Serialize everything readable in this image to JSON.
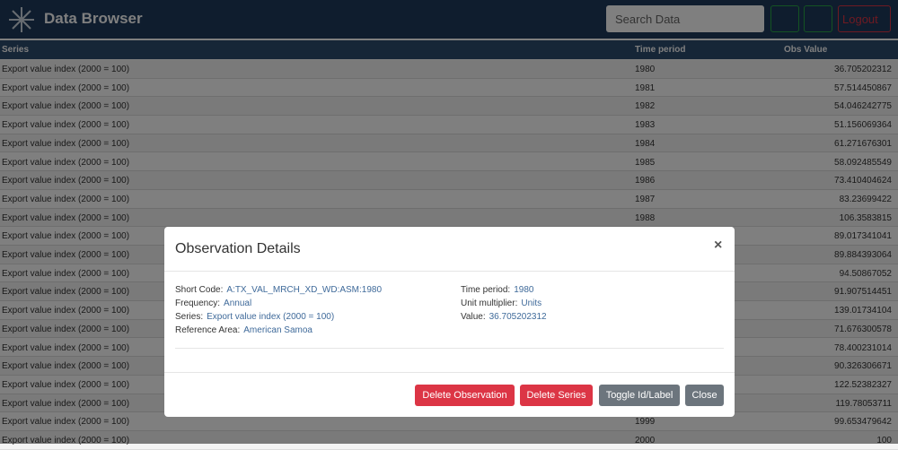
{
  "header": {
    "title": "Data Browser",
    "search_placeholder": "Search Data",
    "logout": "Logout"
  },
  "table": {
    "columns": [
      "Series",
      "Time period",
      "Obs Value"
    ],
    "rows": [
      [
        "Export value index (2000 = 100)",
        "1980",
        "36.705202312"
      ],
      [
        "Export value index (2000 = 100)",
        "1981",
        "57.514450867"
      ],
      [
        "Export value index (2000 = 100)",
        "1982",
        "54.046242775"
      ],
      [
        "Export value index (2000 = 100)",
        "1983",
        "51.156069364"
      ],
      [
        "Export value index (2000 = 100)",
        "1984",
        "61.271676301"
      ],
      [
        "Export value index (2000 = 100)",
        "1985",
        "58.092485549"
      ],
      [
        "Export value index (2000 = 100)",
        "1986",
        "73.410404624"
      ],
      [
        "Export value index (2000 = 100)",
        "1987",
        "83.23699422"
      ],
      [
        "Export value index (2000 = 100)",
        "1988",
        "106.3583815"
      ],
      [
        "Export value index (2000 = 100)",
        null,
        "89.017341041"
      ],
      [
        "Export value index (2000 = 100)",
        null,
        "89.884393064"
      ],
      [
        "Export value index (2000 = 100)",
        null,
        "94.50867052"
      ],
      [
        "Export value index (2000 = 100)",
        null,
        "91.907514451"
      ],
      [
        "Export value index (2000 = 100)",
        null,
        "139.01734104"
      ],
      [
        "Export value index (2000 = 100)",
        null,
        "71.676300578"
      ],
      [
        "Export value index (2000 = 100)",
        null,
        "78.400231014"
      ],
      [
        "Export value index (2000 = 100)",
        null,
        "90.326306671"
      ],
      [
        "Export value index (2000 = 100)",
        null,
        "122.52382327"
      ],
      [
        "Export value index (2000 = 100)",
        null,
        "119.78053711"
      ],
      [
        "Export value index (2000 = 100)",
        "1999",
        "99.653479642"
      ],
      [
        "Export value index (2000 = 100)",
        "2000",
        "100"
      ]
    ]
  },
  "modal": {
    "title": "Observation Details",
    "close": "×",
    "left": [
      {
        "label": "Short Code:",
        "value": "A:TX_VAL_MRCH_XD_WD:ASM:1980"
      },
      {
        "label": "Frequency:",
        "value": "Annual"
      },
      {
        "label": "Series:",
        "value": "Export value index (2000 = 100)"
      },
      {
        "label": "Reference Area:",
        "value": "American Samoa"
      }
    ],
    "right": [
      {
        "label": "Time period:",
        "value": "1980"
      },
      {
        "label": "Unit multiplier:",
        "value": "Units"
      },
      {
        "label": "Value:",
        "value": "36.705202312"
      }
    ],
    "buttons": [
      "Delete Observation",
      "Delete Series",
      "Toggle Id/Label",
      "Close"
    ]
  }
}
